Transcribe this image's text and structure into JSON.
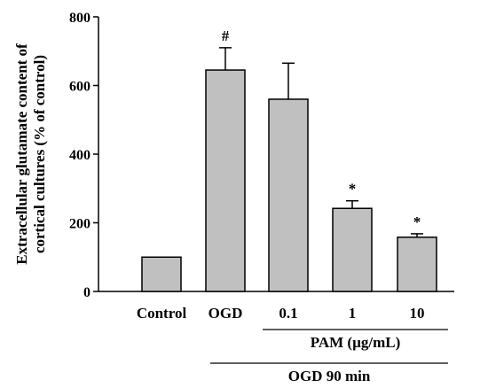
{
  "chart_data": {
    "type": "bar",
    "categories": [
      "Control",
      "OGD",
      "0.1",
      "1",
      "10"
    ],
    "values": [
      100,
      645,
      560,
      242,
      158
    ],
    "errors": [
      0,
      65,
      105,
      22,
      10
    ],
    "annotations": [
      "",
      "#",
      "",
      "*",
      "*"
    ],
    "ylabel_line1": "Extracellular glutamate content of",
    "ylabel_line2": "cortical cultures (% of control)",
    "ylim": [
      0,
      800
    ],
    "yticks": [
      0,
      200,
      400,
      600,
      800
    ],
    "grid": false,
    "bar_color": "#c0c0c0",
    "groups": [
      {
        "label": "PAM (µg/mL)",
        "from": 2,
        "to": 4
      },
      {
        "label": "OGD 90 min",
        "from": 1,
        "to": 4
      }
    ]
  }
}
